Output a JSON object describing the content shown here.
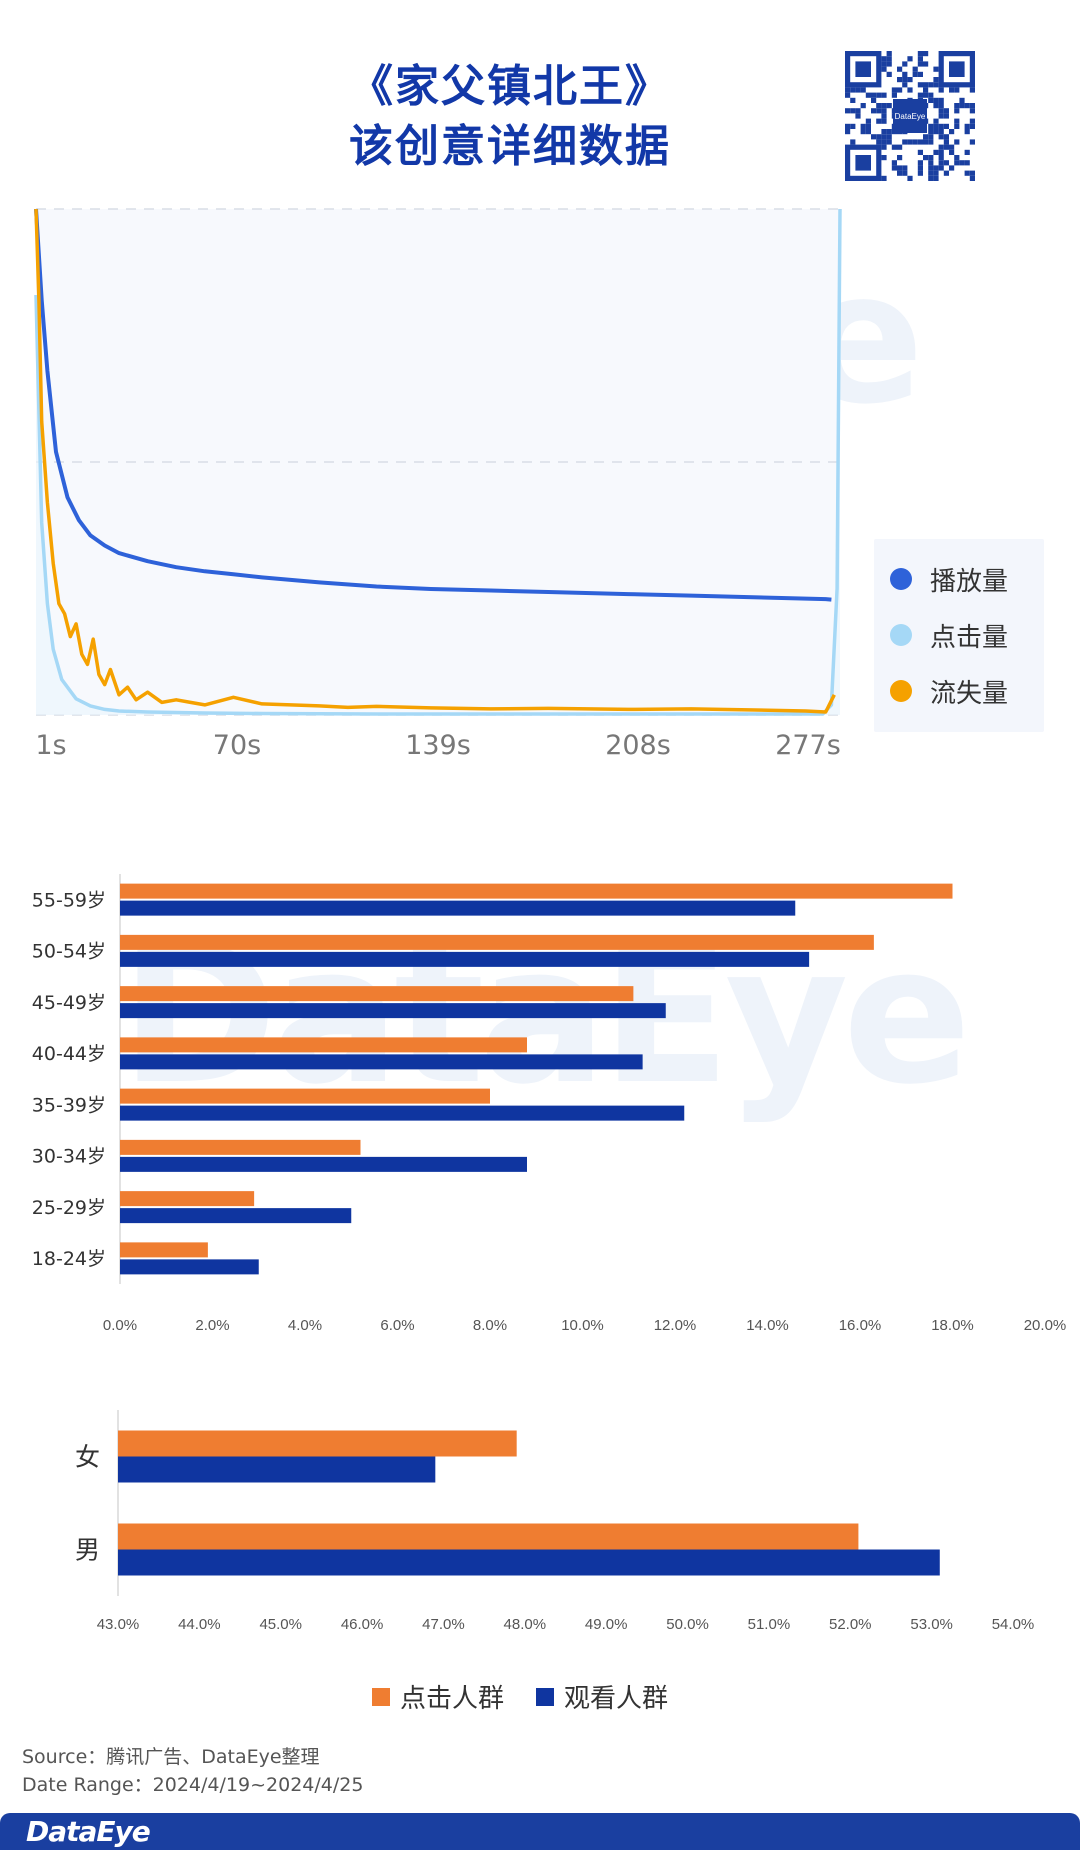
{
  "header": {
    "title_line1": "《家父镇北王》",
    "title_line2": "该创意详细数据",
    "qr_label": "DataEye"
  },
  "watermark": "DataEye",
  "colors": {
    "brand_blue": "#1238a8",
    "play": "#2e62d9",
    "click": "#a5d8f6",
    "loss": "#f5a100",
    "click_crowd": "#ef7d31",
    "view_crowd": "#0f35a0"
  },
  "chart_data": [
    {
      "type": "line",
      "x_unit": "s",
      "x_range": [
        1,
        282
      ],
      "x_ticks": [
        "1s",
        "70s",
        "139s",
        "208s",
        "277s"
      ],
      "y_axis_labels": false,
      "grid": "dashed horizontal",
      "legend_position": "right",
      "series": [
        {
          "name": "播放量",
          "x": [
            1,
            3,
            5,
            8,
            12,
            16,
            20,
            25,
            30,
            40,
            50,
            60,
            70,
            80,
            100,
            120,
            139,
            160,
            180,
            208,
            230,
            250,
            277,
            279
          ],
          "y": [
            100,
            82,
            68,
            52,
            43,
            38.5,
            35.5,
            33.5,
            32,
            30.4,
            29.2,
            28.4,
            27.8,
            27.2,
            26.2,
            25.4,
            24.9,
            24.6,
            24.3,
            23.9,
            23.6,
            23.3,
            22.9,
            22.8
          ]
        },
        {
          "name": "点击量",
          "x": [
            1,
            2,
            3,
            5,
            7,
            10,
            15,
            20,
            25,
            30,
            40,
            60,
            80,
            120,
            160,
            200,
            240,
            276,
            279,
            281,
            282
          ],
          "y": [
            83,
            60,
            38,
            22,
            13,
            7,
            3.2,
            1.8,
            1.1,
            0.8,
            0.6,
            0.4,
            0.3,
            0.2,
            0.2,
            0.2,
            0.2,
            0.2,
            2,
            25,
            100
          ],
          "note": ""
        },
        {
          "name": "流失量",
          "x": [
            1,
            2,
            3,
            5,
            7,
            9,
            11,
            13,
            15,
            17,
            19,
            21,
            23,
            25,
            27,
            30,
            33,
            36,
            40,
            45,
            50,
            55,
            60,
            70,
            80,
            90,
            100,
            110,
            120,
            139,
            160,
            180,
            208,
            230,
            250,
            270,
            277,
            280
          ],
          "y": [
            100,
            82,
            58,
            42,
            30,
            22,
            20,
            15.5,
            18,
            12,
            10,
            15,
            8,
            6,
            9,
            4,
            5.5,
            3,
            4.5,
            2.5,
            3,
            2.5,
            2,
            3.5,
            2.2,
            2,
            1.8,
            1.5,
            1.7,
            1.4,
            1.2,
            1.3,
            1.1,
            1.2,
            1,
            0.8,
            0.6,
            4
          ]
        }
      ]
    },
    {
      "type": "bar",
      "orientation": "horizontal",
      "categories": [
        "55-59岁",
        "50-54岁",
        "45-49岁",
        "40-44岁",
        "35-39岁",
        "30-34岁",
        "25-29岁",
        "18-24岁"
      ],
      "series": [
        {
          "name": "点击人群",
          "values": [
            18.0,
            16.3,
            11.1,
            8.8,
            8.0,
            5.2,
            2.9,
            1.9
          ]
        },
        {
          "name": "观看人群",
          "values": [
            14.6,
            14.9,
            11.8,
            11.3,
            12.2,
            8.8,
            5.0,
            3.0
          ]
        }
      ],
      "xlim": [
        0,
        20
      ],
      "x_ticks": [
        "0.0%",
        "2.0%",
        "4.0%",
        "6.0%",
        "8.0%",
        "10.0%",
        "12.0%",
        "14.0%",
        "16.0%",
        "18.0%",
        "20.0%"
      ]
    },
    {
      "type": "bar",
      "orientation": "horizontal",
      "categories": [
        "女",
        "男"
      ],
      "series": [
        {
          "name": "点击人群",
          "values": [
            47.9,
            52.1
          ]
        },
        {
          "name": "观看人群",
          "values": [
            46.9,
            53.1
          ]
        }
      ],
      "xlim": [
        43,
        54
      ],
      "x_ticks": [
        "43.0%",
        "44.0%",
        "45.0%",
        "46.0%",
        "47.0%",
        "48.0%",
        "49.0%",
        "50.0%",
        "51.0%",
        "52.0%",
        "53.0%",
        "54.0%"
      ]
    }
  ],
  "legend_bottom": [
    "点击人群",
    "观看人群"
  ],
  "footer": {
    "source": "Source：腾讯广告、DataEye整理",
    "date_range": "Date Range：2024/4/19~2024/4/25",
    "brand": "DataEye"
  }
}
